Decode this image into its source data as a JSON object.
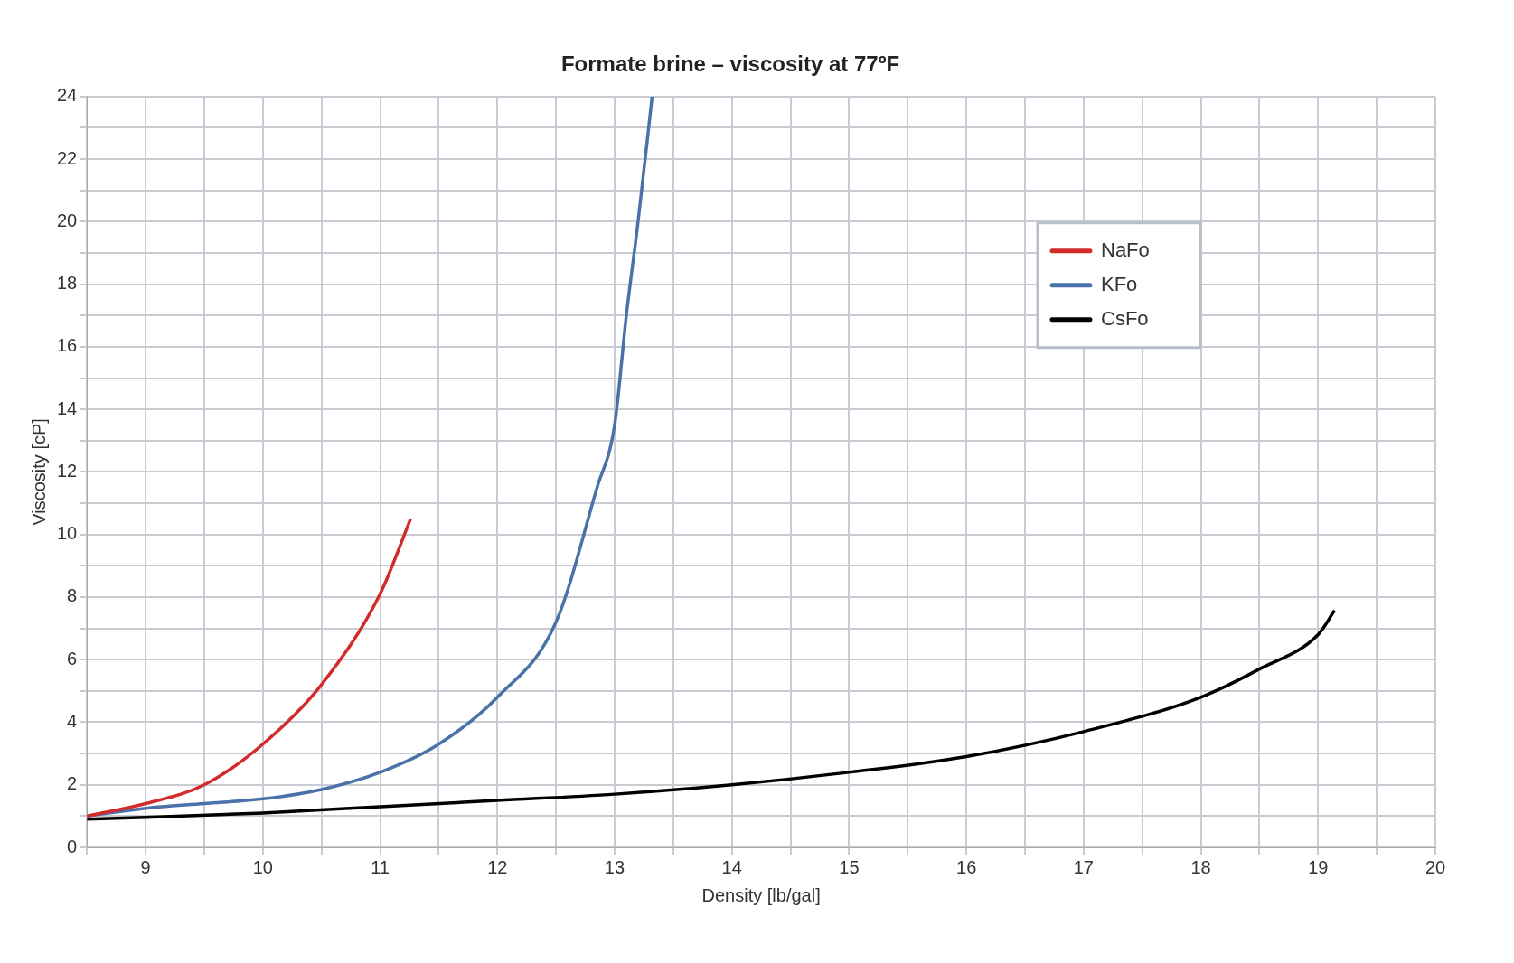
{
  "chart_data": {
    "type": "line",
    "title": "Formate brine – viscosity at 77ºF",
    "xlabel": "Density [lb/gal]",
    "ylabel": "Viscosity [cP]",
    "xlim": [
      8.5,
      20
    ],
    "xticks": [
      {
        "value": 8.5,
        "label": null
      },
      9,
      {
        "value": 9.5,
        "label": null
      },
      10,
      {
        "value": 10.5,
        "label": null
      },
      11,
      {
        "value": 11.5,
        "label": null
      },
      12,
      {
        "value": 12.5,
        "label": null
      },
      13,
      {
        "value": 13.5,
        "label": null
      },
      14,
      {
        "value": 14.5,
        "label": null
      },
      15,
      {
        "value": 15.5,
        "label": null
      },
      16,
      {
        "value": 16.5,
        "label": null
      },
      17,
      {
        "value": 17.5,
        "label": null
      },
      18,
      {
        "value": 18.5,
        "label": null
      },
      19,
      {
        "value": 19.5,
        "label": null
      },
      20
    ],
    "ylim": [
      0,
      24
    ],
    "yticks": [
      0,
      {
        "value": 1,
        "label": null
      },
      2,
      {
        "value": 3,
        "label": null
      },
      4,
      {
        "value": 5,
        "label": null
      },
      6,
      {
        "value": 7,
        "label": null
      },
      8,
      {
        "value": 9,
        "label": null
      },
      10,
      {
        "value": 11,
        "label": null
      },
      12,
      {
        "value": 13,
        "label": null
      },
      14,
      {
        "value": 15,
        "label": null
      },
      16,
      {
        "value": 17,
        "label": null
      },
      18,
      {
        "value": 19,
        "label": null
      },
      20,
      {
        "value": 21,
        "label": null
      },
      22,
      {
        "value": 23,
        "label": null
      },
      24
    ],
    "grid": true,
    "legend": "top right",
    "marker": "none",
    "line_style": "solid",
    "series": [
      {
        "name": "NaFo",
        "color": "#d22b2b",
        "x": [
          8.5,
          9,
          9.5,
          10,
          10.5,
          11,
          11.26
        ],
        "values": [
          1.0,
          1.4,
          2.0,
          3.3,
          5.2,
          8.1,
          10.5
        ]
      },
      {
        "name": "KFo",
        "color": "#4a72a8",
        "x": [
          8.5,
          9,
          9.5,
          10,
          10.5,
          11,
          11.5,
          12,
          12.5,
          12.85,
          13,
          13.1,
          13.2,
          13.32
        ],
        "values": [
          1.0,
          1.25,
          1.4,
          1.55,
          1.85,
          2.4,
          3.3,
          4.8,
          7.2,
          11.5,
          13.5,
          17,
          20,
          24
        ]
      },
      {
        "name": "CsFo",
        "color": "#000000",
        "x": [
          8.5,
          10,
          11,
          12,
          13,
          14,
          15,
          16,
          17,
          18,
          18.5,
          19,
          19.14
        ],
        "values": [
          0.9,
          1.1,
          1.3,
          1.5,
          1.7,
          2.0,
          2.4,
          2.9,
          3.7,
          4.8,
          5.7,
          6.8,
          7.57
        ]
      }
    ]
  }
}
